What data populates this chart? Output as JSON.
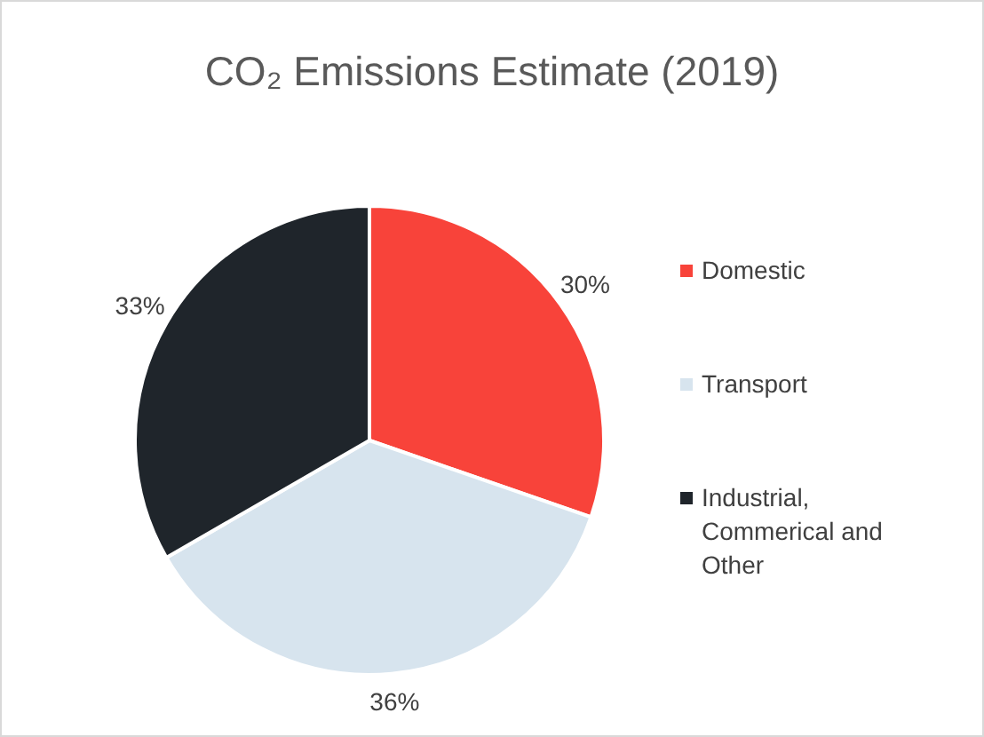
{
  "chart_data": {
    "type": "pie",
    "title": "CO₂ Emissions Estimate (2019)",
    "categories": [
      "Domestic",
      "Transport",
      "Industrial, Commerical and Other"
    ],
    "values": [
      30,
      36,
      33
    ],
    "colors": [
      "#f8433a",
      "#d7e4ee",
      "#1f252b"
    ],
    "value_labels": [
      "30%",
      "36%",
      "33%"
    ],
    "legend": "right"
  }
}
